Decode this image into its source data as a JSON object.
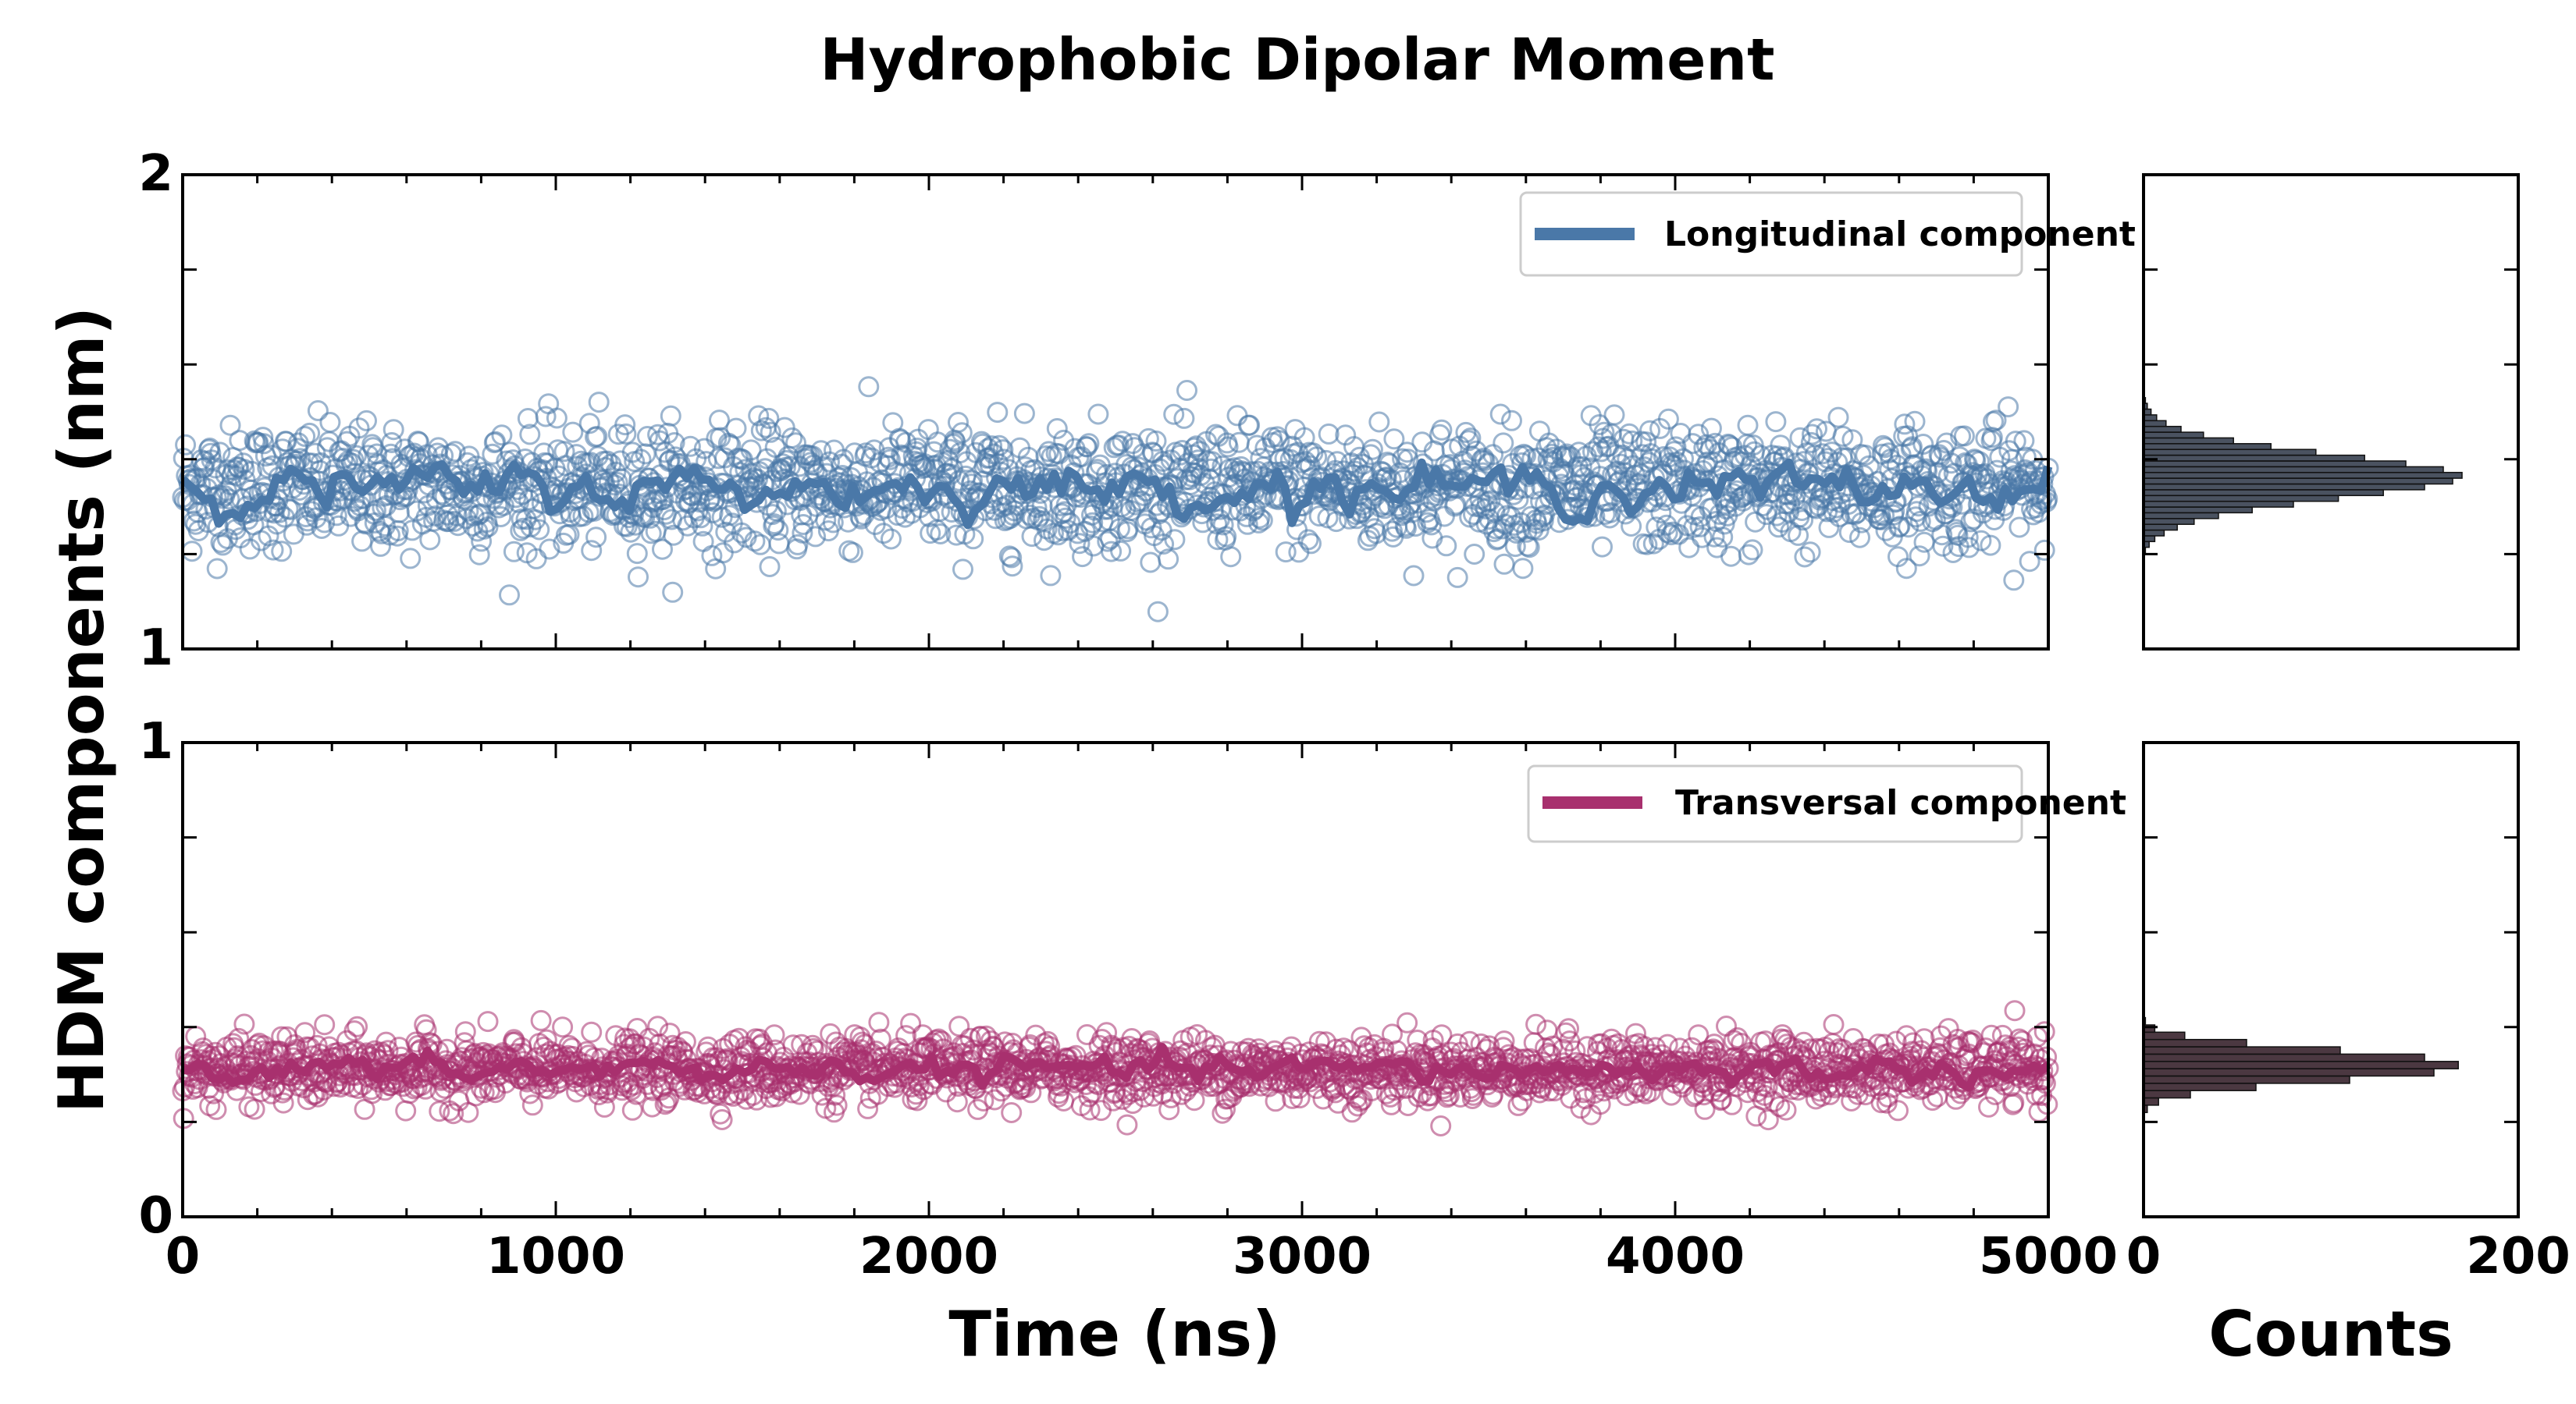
{
  "chart_data": {
    "type": "scatter",
    "title": "Hydrophobic Dipolar Moment",
    "ylabel": "HDM components (nm)",
    "colors": {
      "longitudinal": "#4a78a8",
      "transversal": "#a8306e",
      "hist_fill": "#2a3444",
      "hist_fill_dark": "#2b1520"
    },
    "panels": [
      {
        "id": "longitudinal",
        "legend": "Longitudinal component",
        "xlabel": "",
        "xlim": [
          0,
          5000
        ],
        "ylim": [
          1,
          2
        ],
        "yticks": [
          "1",
          "2"
        ],
        "xticks": [],
        "mean": 1.34,
        "scatter_spread": 0.065,
        "smooth_spread": 0.02,
        "n_points": 2000,
        "hist_counts": [
          0,
          1,
          3,
          6,
          11,
          18,
          27,
          40,
          58,
          80,
          104,
          128,
          150,
          165,
          170,
          160,
          140,
          118,
          92,
          68,
          48,
          32,
          20,
          12,
          7,
          4,
          2,
          1
        ],
        "hist_range": [
          1.19,
          1.53
        ]
      },
      {
        "id": "transversal",
        "legend": "Transversal component",
        "xlabel": "Time (ns)",
        "xlim": [
          0,
          5000
        ],
        "ylim": [
          0,
          1
        ],
        "yticks": [
          "0",
          "1"
        ],
        "xticks": [
          "0",
          "1000",
          "2000",
          "3000",
          "4000",
          "5000"
        ],
        "mean": 0.31,
        "scatter_spread": 0.035,
        "smooth_spread": 0.012,
        "n_points": 2000,
        "hist_counts": [
          2,
          8,
          25,
          60,
          110,
          155,
          168,
          150,
          105,
          55,
          22,
          6,
          1
        ],
        "hist_range": [
          0.22,
          0.42
        ]
      }
    ],
    "histogram": {
      "xlabel": "Counts",
      "xlim": [
        0,
        200
      ],
      "xticks": [
        "0",
        "200"
      ]
    }
  }
}
